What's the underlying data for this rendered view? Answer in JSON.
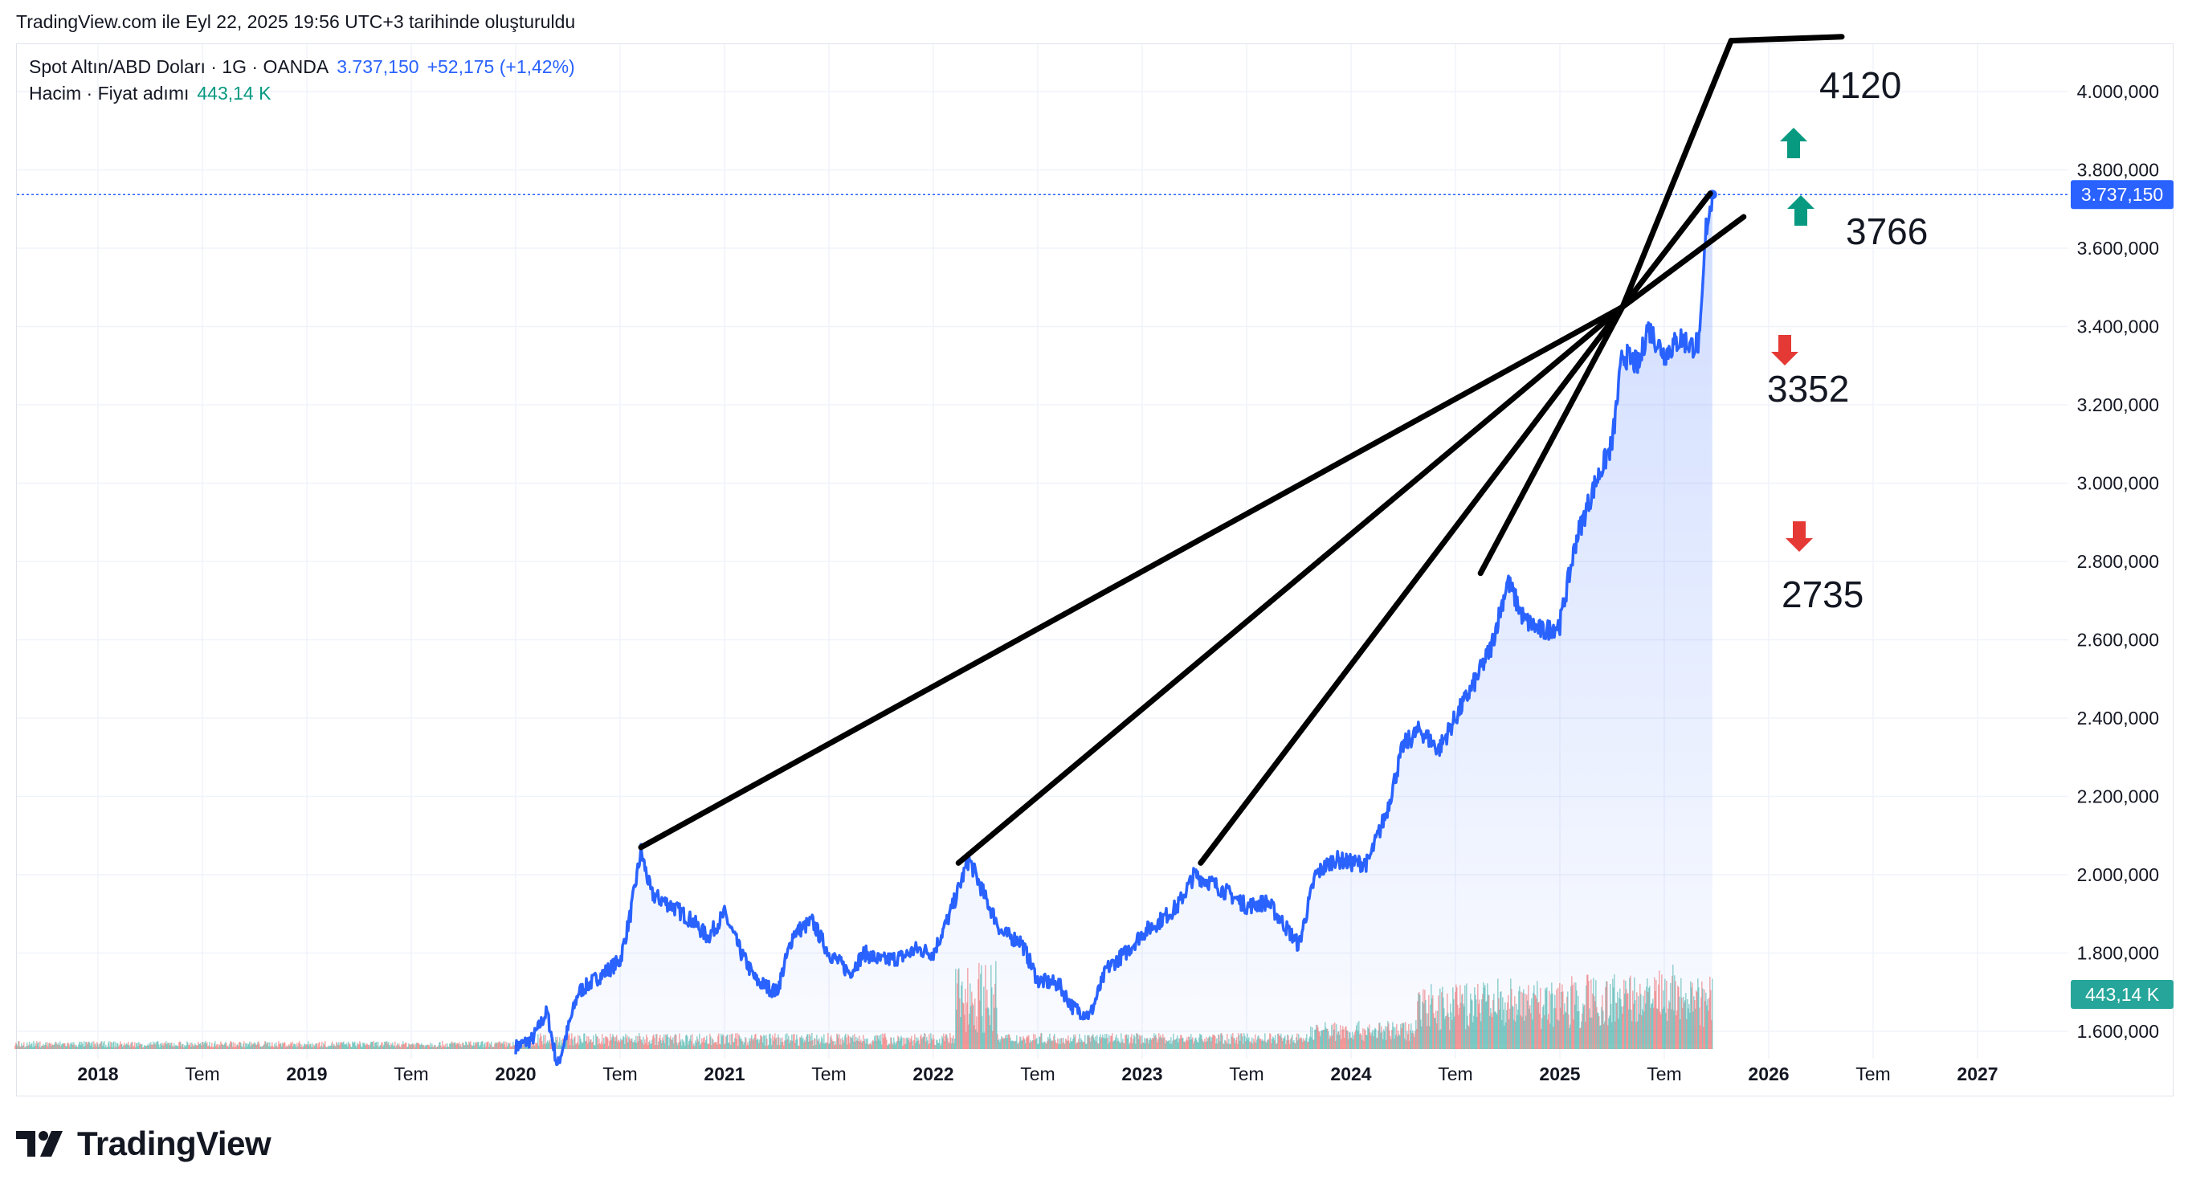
{
  "header": {
    "created_text": "TradingView.com ile Eyl 22, 2025 19:56 UTC+3 tarihinde oluşturuldu"
  },
  "legend": {
    "symbol": "Spot Altın/ABD Doları · 1G · OANDA",
    "price": "3.737,150",
    "change": "+52,175 (+1,42%)",
    "volume_label": "Hacim · Fiyat adımı",
    "volume_value": "443,14 K"
  },
  "colors": {
    "price_line": "#2962ff",
    "area_fill": "#2962ff",
    "volume_up": "#26a69a",
    "volume_down": "#ef5350",
    "arrow_up": "#089981",
    "arrow_down": "#e53935",
    "drawing": "#000000"
  },
  "chart_data": {
    "type": "line",
    "title": "Spot Altın/ABD Doları · 1G · OANDA",
    "y_axis": {
      "min": 1550,
      "max": 4150,
      "ticks": [
        "1.600,000",
        "1.800,000",
        "2.000,000",
        "2.200,000",
        "2.400,000",
        "2.600,000",
        "2.800,000",
        "3.000,000",
        "3.200,000",
        "3.400,000",
        "3.600,000",
        "3.800,000",
        "4.000,000"
      ],
      "tick_values": [
        1600,
        1800,
        2000,
        2200,
        2400,
        2600,
        2800,
        3000,
        3200,
        3400,
        3600,
        3800,
        4000
      ],
      "last_price_label": "3.737,150",
      "last_volume_label": "443,14 K"
    },
    "x_axis": {
      "range": [
        2017.6,
        2027.5
      ],
      "labels": [
        {
          "t": "2018",
          "v": 2018.0,
          "bold": true
        },
        {
          "t": "Tem",
          "v": 2018.5,
          "bold": false
        },
        {
          "t": "2019",
          "v": 2019.0,
          "bold": true
        },
        {
          "t": "Tem",
          "v": 2019.5,
          "bold": false
        },
        {
          "t": "2020",
          "v": 2020.0,
          "bold": true
        },
        {
          "t": "Tem",
          "v": 2020.5,
          "bold": false
        },
        {
          "t": "2021",
          "v": 2021.0,
          "bold": true
        },
        {
          "t": "Tem",
          "v": 2021.5,
          "bold": false
        },
        {
          "t": "2022",
          "v": 2022.0,
          "bold": true
        },
        {
          "t": "Tem",
          "v": 2022.5,
          "bold": false
        },
        {
          "t": "2023",
          "v": 2023.0,
          "bold": true
        },
        {
          "t": "Tem",
          "v": 2023.5,
          "bold": false
        },
        {
          "t": "2024",
          "v": 2024.0,
          "bold": true
        },
        {
          "t": "Tem",
          "v": 2024.5,
          "bold": false
        },
        {
          "t": "2025",
          "v": 2025.0,
          "bold": true
        },
        {
          "t": "Tem",
          "v": 2025.5,
          "bold": false
        },
        {
          "t": "2026",
          "v": 2026.0,
          "bold": true
        },
        {
          "t": "Tem",
          "v": 2026.5,
          "bold": false
        },
        {
          "t": "2027",
          "v": 2027.0,
          "bold": true
        }
      ]
    },
    "series": [
      {
        "name": "Spot Altın/ABD Doları",
        "points": [
          [
            2020.0,
            1560
          ],
          [
            2020.08,
            1580
          ],
          [
            2020.15,
            1650
          ],
          [
            2020.2,
            1510
          ],
          [
            2020.3,
            1700
          ],
          [
            2020.4,
            1740
          ],
          [
            2020.5,
            1780
          ],
          [
            2020.55,
            1900
          ],
          [
            2020.6,
            2060
          ],
          [
            2020.65,
            1950
          ],
          [
            2020.75,
            1920
          ],
          [
            2020.85,
            1880
          ],
          [
            2020.92,
            1840
          ],
          [
            2021.0,
            1900
          ],
          [
            2021.08,
            1800
          ],
          [
            2021.15,
            1730
          ],
          [
            2021.25,
            1700
          ],
          [
            2021.33,
            1850
          ],
          [
            2021.42,
            1880
          ],
          [
            2021.5,
            1800
          ],
          [
            2021.6,
            1750
          ],
          [
            2021.67,
            1800
          ],
          [
            2021.75,
            1780
          ],
          [
            2021.85,
            1790
          ],
          [
            2021.92,
            1810
          ],
          [
            2022.0,
            1800
          ],
          [
            2022.08,
            1900
          ],
          [
            2022.17,
            2040
          ],
          [
            2022.25,
            1940
          ],
          [
            2022.33,
            1850
          ],
          [
            2022.42,
            1830
          ],
          [
            2022.5,
            1730
          ],
          [
            2022.6,
            1720
          ],
          [
            2022.67,
            1660
          ],
          [
            2022.75,
            1640
          ],
          [
            2022.83,
            1760
          ],
          [
            2022.92,
            1800
          ],
          [
            2023.0,
            1850
          ],
          [
            2023.08,
            1880
          ],
          [
            2023.17,
            1920
          ],
          [
            2023.25,
            2000
          ],
          [
            2023.33,
            1980
          ],
          [
            2023.42,
            1950
          ],
          [
            2023.5,
            1920
          ],
          [
            2023.6,
            1930
          ],
          [
            2023.67,
            1880
          ],
          [
            2023.75,
            1820
          ],
          [
            2023.83,
            2000
          ],
          [
            2023.92,
            2040
          ],
          [
            2024.0,
            2030
          ],
          [
            2024.08,
            2030
          ],
          [
            2024.17,
            2160
          ],
          [
            2024.25,
            2330
          ],
          [
            2024.33,
            2370
          ],
          [
            2024.42,
            2320
          ],
          [
            2024.5,
            2400
          ],
          [
            2024.6,
            2500
          ],
          [
            2024.67,
            2580
          ],
          [
            2024.75,
            2750
          ],
          [
            2024.83,
            2650
          ],
          [
            2024.92,
            2620
          ],
          [
            2025.0,
            2640
          ],
          [
            2025.08,
            2860
          ],
          [
            2025.17,
            3000
          ],
          [
            2025.25,
            3100
          ],
          [
            2025.3,
            3330
          ],
          [
            2025.38,
            3300
          ],
          [
            2025.42,
            3400
          ],
          [
            2025.5,
            3330
          ],
          [
            2025.58,
            3370
          ],
          [
            2025.63,
            3350
          ],
          [
            2025.67,
            3360
          ],
          [
            2025.7,
            3650
          ],
          [
            2025.73,
            3737
          ]
        ]
      }
    ],
    "annotations": [
      "4120",
      "3766",
      "3352",
      "2735"
    ]
  }
}
